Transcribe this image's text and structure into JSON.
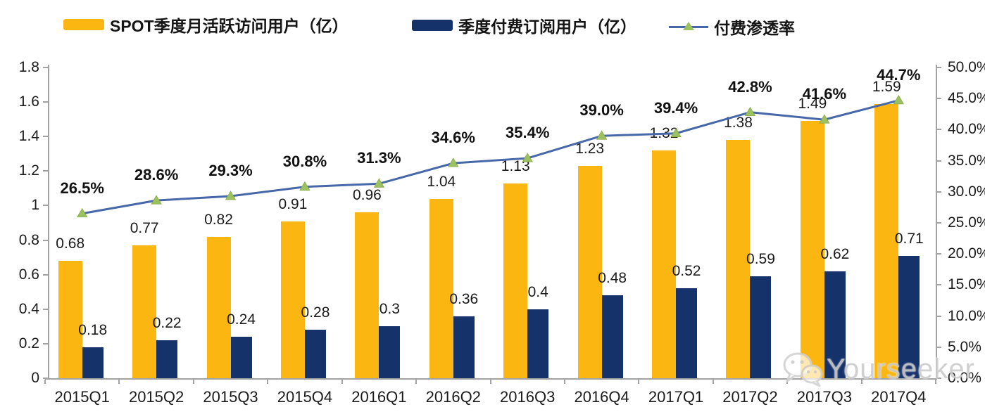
{
  "watermark": {
    "text": "Yourseeker"
  },
  "chart_data": {
    "type": "combo-bar-line",
    "title": "",
    "legend_position": "top",
    "grid": "none",
    "categories": [
      "2015Q1",
      "2015Q2",
      "2015Q3",
      "2015Q4",
      "2016Q1",
      "2016Q2",
      "2016Q3",
      "2016Q4",
      "2017Q1",
      "2017Q2",
      "2017Q3",
      "2017Q4"
    ],
    "series": [
      {
        "name": "SPOT季度月活跃访问用户（亿）",
        "type": "bar",
        "axis": "left",
        "color": "#FBB612",
        "values": [
          0.68,
          0.77,
          0.82,
          0.91,
          0.96,
          1.04,
          1.13,
          1.23,
          1.32,
          1.38,
          1.49,
          1.59
        ],
        "labels": [
          "0.68",
          "0.77",
          "0.82",
          "0.91",
          "0.96",
          "1.04",
          "1.13",
          "1.23",
          "1.32",
          "1.38",
          "1.49",
          "1.59"
        ]
      },
      {
        "name": "季度付费订阅用户（亿）",
        "type": "bar",
        "axis": "left",
        "color": "#16326B",
        "values": [
          0.18,
          0.22,
          0.24,
          0.28,
          0.3,
          0.36,
          0.4,
          0.48,
          0.52,
          0.59,
          0.62,
          0.71
        ],
        "labels": [
          "0.18",
          "0.22",
          "0.24",
          "0.28",
          "0.3",
          "0.36",
          "0.4",
          "0.48",
          "0.52",
          "0.59",
          "0.62",
          "0.71"
        ]
      },
      {
        "name": "付费渗透率",
        "type": "line",
        "axis": "right",
        "color": "#4668A8",
        "marker": "triangle",
        "marker_color": "#9CC161",
        "values": [
          26.5,
          28.6,
          29.3,
          30.8,
          31.3,
          34.6,
          35.4,
          39.0,
          39.4,
          42.8,
          41.6,
          44.7
        ],
        "labels": [
          "26.5%",
          "28.6%",
          "29.3%",
          "30.8%",
          "31.3%",
          "34.6%",
          "35.4%",
          "39.0%",
          "39.4%",
          "42.8%",
          "41.6%",
          "44.7%"
        ]
      }
    ],
    "left_axis": {
      "min": 0,
      "max": 1.8,
      "ticks": [
        "1.8",
        "1.6",
        "1.4",
        "1.2",
        "1",
        "0.8",
        "0.6",
        "0.4",
        "0.2",
        "0"
      ]
    },
    "right_axis": {
      "min": 0,
      "max": 50,
      "ticks": [
        "50.0%",
        "45.0%",
        "40.0%",
        "35.0%",
        "30.0%",
        "25.0%",
        "20.0%",
        "15.0%",
        "10.0%",
        "5.0%",
        "0.0%"
      ]
    }
  }
}
